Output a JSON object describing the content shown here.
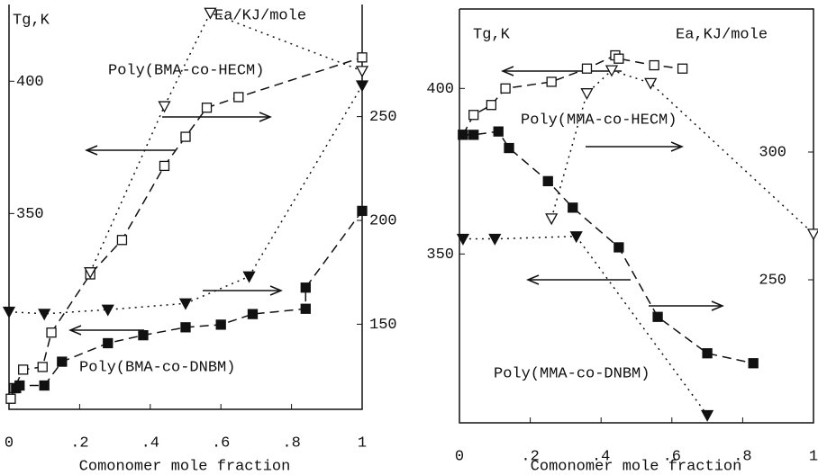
{
  "chart_data": [
    {
      "type": "scatter",
      "xlabel": "Comonomer mole fraction",
      "ylabel": "Tg,K",
      "y2label": "Ea/KJ/mole",
      "annotations": [
        "Poly(BMA-co-HECM)",
        "Poly(BMA-co-DNBM)"
      ],
      "xlim": [
        0,
        1
      ],
      "xticks": [
        0,
        {
          "value": 0.2,
          "label": ".2"
        },
        {
          "value": 0.4,
          "label": ".4"
        },
        {
          "value": 0.6,
          "label": ".6"
        },
        {
          "value": 0.8,
          "label": ".8"
        },
        1
      ],
      "ylim": [
        276,
        429
      ],
      "yticks": [
        350,
        400
      ],
      "y2lim": [
        109,
        304
      ],
      "y2ticks": [
        150,
        200,
        250
      ],
      "series": [
        {
          "marker": "open-square",
          "line": "dashed",
          "color": "#111",
          "axis": "y",
          "x": [
            0.005,
            0.015,
            0.04,
            0.095,
            0.12,
            0.23,
            0.32,
            0.44,
            0.5,
            0.56,
            0.65,
            1.0
          ],
          "values": [
            280,
            284,
            291,
            292,
            305,
            327,
            340,
            368,
            379,
            390,
            394,
            409
          ]
        },
        {
          "marker": "filled-square",
          "line": "dashed",
          "color": "#111",
          "axis": "y",
          "x": [
            0.02,
            0.03,
            0.1,
            0.15,
            0.28,
            0.38,
            0.5,
            0.6,
            0.69,
            0.84,
            0.84,
            1.0
          ],
          "values": [
            284,
            285,
            285,
            294,
            301,
            304,
            307,
            308,
            312,
            314,
            322,
            351
          ]
        },
        {
          "marker": "open-triangle",
          "line": "dotted",
          "color": "#111",
          "axis": "y2",
          "x": [
            0.23,
            0.44,
            0.57,
            1.0
          ],
          "values": [
            175,
            255,
            300,
            272
          ]
        },
        {
          "marker": "filled-triangle",
          "line": "dotted",
          "color": "#111",
          "axis": "y2",
          "x": [
            0,
            0.1,
            0.28,
            0.5,
            0.68,
            1.0
          ],
          "values": [
            156,
            155,
            157,
            160,
            173,
            265
          ]
        }
      ]
    },
    {
      "type": "scatter",
      "xlabel": "Comonomer mole fraction",
      "ylabel": "Tg,K",
      "y2label": "Ea,KJ/mole",
      "annotations": [
        "Poly(MMA-co-HECM)",
        "Poly(MMA-co-DNBM)"
      ],
      "xlim": [
        0,
        1
      ],
      "xticks": [
        0,
        {
          "value": 0.2,
          "label": ".2"
        },
        {
          "value": 0.4,
          "label": ".4"
        },
        {
          "value": 0.6,
          "label": ".6"
        },
        {
          "value": 0.8,
          "label": ".8"
        },
        1
      ],
      "ylim": [
        299,
        424
      ],
      "yticks": [
        350,
        400
      ],
      "y2lim": [
        194,
        356
      ],
      "y2ticks": [
        250,
        300
      ],
      "series": [
        {
          "marker": "open-square",
          "line": "dashed",
          "color": "#111",
          "axis": "y",
          "x": [
            0.01,
            0.04,
            0.09,
            0.13,
            0.26,
            0.36,
            0.44,
            0.45,
            0.55,
            0.63
          ],
          "values": [
            386,
            392,
            395,
            400,
            402,
            406,
            410,
            409,
            407,
            406
          ]
        },
        {
          "marker": "filled-square",
          "line": "dashed",
          "color": "#111",
          "axis": "y",
          "x": [
            0.01,
            0.04,
            0.11,
            0.14,
            0.25,
            0.32,
            0.45,
            0.56,
            0.7,
            0.83
          ],
          "values": [
            386,
            386,
            387,
            382,
            372,
            364,
            352,
            331,
            320,
            317
          ]
        },
        {
          "marker": "open-triangle",
          "line": "dotted",
          "color": "#111",
          "axis": "y2",
          "x": [
            0.26,
            0.36,
            0.43,
            0.54,
            1.0
          ],
          "values": [
            274,
            323,
            332,
            327,
            268
          ]
        },
        {
          "marker": "filled-triangle",
          "line": "dotted",
          "color": "#111",
          "axis": "y2",
          "x": [
            0.01,
            0.1,
            0.33,
            0.7
          ],
          "values": [
            266,
            266,
            267,
            197
          ]
        }
      ]
    }
  ]
}
